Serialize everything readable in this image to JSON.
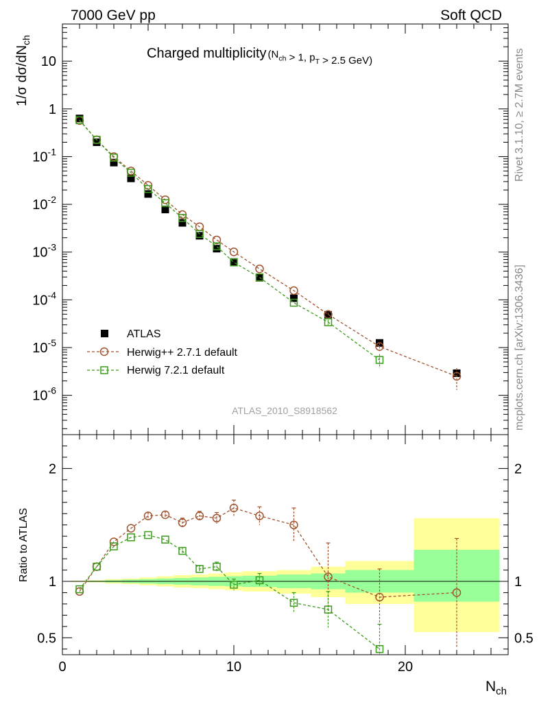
{
  "header": {
    "left": "7000 GeV pp",
    "right": "Soft QCD"
  },
  "side_labels": {
    "rivet": "Rivet 3.1.10, ≥ 2.7M events",
    "mcplots": "mcplots.cern.ch [arXiv:1306.3436]"
  },
  "chart_data": [
    {
      "type": "scatter",
      "panel": "main",
      "title_main": "Charged multiplicity",
      "title_cond": "(N_ch > 1, p_T > 2.5 GeV)",
      "ylabel": "1/σ dσ/dN_ch",
      "yscale": "log",
      "ylim": [
        1.5e-07,
        60
      ],
      "xlim": [
        0,
        26
      ],
      "y_ticks": [
        {
          "value": 10,
          "label": "10"
        },
        {
          "value": 1,
          "label": "1"
        },
        {
          "value": 0.1,
          "label": "10^-1"
        },
        {
          "value": 0.01,
          "label": "10^-2"
        },
        {
          "value": 0.001,
          "label": "10^-3"
        },
        {
          "value": 0.0001,
          "label": "10^-4"
        },
        {
          "value": 1e-05,
          "label": "10^-5"
        },
        {
          "value": 1e-06,
          "label": "10^-6"
        }
      ],
      "watermark": "ATLAS_2010_S8918562",
      "legend": [
        {
          "name": "ATLAS",
          "style": "filled-square",
          "color": "#000000"
        },
        {
          "name": "Herwig++ 2.7.1 default",
          "style": "circle-dashed",
          "color": "#a0522d"
        },
        {
          "name": "Herwig 7.2.1 default",
          "style": "square-dashed",
          "color": "#3a9a1a"
        }
      ],
      "series": [
        {
          "name": "ATLAS",
          "x": [
            1,
            2,
            3,
            4,
            5,
            6,
            7,
            8,
            9,
            10,
            11.5,
            13.5,
            15.5,
            18.5,
            23
          ],
          "y": [
            0.63,
            0.2,
            0.075,
            0.035,
            0.0165,
            0.0078,
            0.0041,
            0.0022,
            0.00118,
            0.00062,
            0.00029,
            0.000108,
            4.85e-05,
            1.25e-05,
            2.9e-06
          ]
        },
        {
          "name": "Herwig++ 2.7.1 default",
          "x": [
            1,
            2,
            3,
            4,
            5,
            6,
            7,
            8,
            9,
            10,
            11.5,
            13.5,
            15.5,
            18.5,
            23
          ],
          "y": [
            0.57,
            0.225,
            0.1,
            0.05,
            0.025,
            0.0125,
            0.0061,
            0.0034,
            0.0018,
            0.00101,
            0.000445,
            0.000156,
            4.95e-05,
            1.05e-05,
            2.5e-06
          ],
          "yerr": [
            0,
            0,
            0,
            0,
            0,
            0,
            0,
            0,
            0,
            0,
            0,
            0,
            4e-06,
            2e-06,
            1.2e-06
          ]
        },
        {
          "name": "Herwig 7.2.1 default",
          "x": [
            1,
            2,
            3,
            4,
            5,
            6,
            7,
            8,
            9,
            10,
            11.5,
            13.5,
            15.5,
            18.5
          ],
          "y": [
            0.58,
            0.225,
            0.095,
            0.046,
            0.021,
            0.0106,
            0.0052,
            0.0024,
            0.00132,
            0.00061,
            0.000295,
            8.7e-05,
            3.4e-05,
            5.5e-06
          ],
          "yerr": [
            0,
            0,
            0,
            0,
            0,
            0,
            0,
            0,
            0,
            0,
            0,
            0,
            4e-06,
            1.8e-06
          ]
        }
      ]
    },
    {
      "type": "scatter",
      "panel": "ratio",
      "ylabel": "Ratio to ATLAS",
      "xlabel": "N_ch",
      "ylim": [
        0.35,
        2.3
      ],
      "xlim": [
        0,
        26
      ],
      "y_ticks": [
        {
          "value": 2,
          "label": "2"
        },
        {
          "value": 1,
          "label": "1"
        },
        {
          "value": 0.5,
          "label": "0.5"
        }
      ],
      "x_ticks": [
        {
          "value": 0,
          "label": "0"
        },
        {
          "value": 10,
          "label": "10"
        },
        {
          "value": 20,
          "label": "20"
        }
      ],
      "bands": [
        {
          "x0": 0.5,
          "x1": 1.5,
          "y2_lo": 0.995,
          "y2_hi": 1.005,
          "y1_lo": 0.997,
          "y1_hi": 1.003
        },
        {
          "x0": 1.5,
          "x1": 2.5,
          "y2_lo": 0.99,
          "y2_hi": 1.01,
          "y1_lo": 0.995,
          "y1_hi": 1.005
        },
        {
          "x0": 2.5,
          "x1": 3.5,
          "y2_lo": 0.98,
          "y2_hi": 1.02,
          "y1_lo": 0.99,
          "y1_hi": 1.01
        },
        {
          "x0": 3.5,
          "x1": 4.5,
          "y2_lo": 0.975,
          "y2_hi": 1.025,
          "y1_lo": 0.985,
          "y1_hi": 1.015
        },
        {
          "x0": 4.5,
          "x1": 5.5,
          "y2_lo": 0.965,
          "y2_hi": 1.035,
          "y1_lo": 0.98,
          "y1_hi": 1.02
        },
        {
          "x0": 5.5,
          "x1": 6.5,
          "y2_lo": 0.955,
          "y2_hi": 1.045,
          "y1_lo": 0.975,
          "y1_hi": 1.025
        },
        {
          "x0": 6.5,
          "x1": 7.5,
          "y2_lo": 0.945,
          "y2_hi": 1.055,
          "y1_lo": 0.97,
          "y1_hi": 1.03
        },
        {
          "x0": 7.5,
          "x1": 8.5,
          "y2_lo": 0.94,
          "y2_hi": 1.06,
          "y1_lo": 0.965,
          "y1_hi": 1.035
        },
        {
          "x0": 8.5,
          "x1": 9.5,
          "y2_lo": 0.93,
          "y2_hi": 1.07,
          "y1_lo": 0.96,
          "y1_hi": 1.04
        },
        {
          "x0": 9.5,
          "x1": 10.5,
          "y2_lo": 0.92,
          "y2_hi": 1.08,
          "y1_lo": 0.955,
          "y1_hi": 1.045
        },
        {
          "x0": 10.5,
          "x1": 12.5,
          "y2_lo": 0.91,
          "y2_hi": 1.09,
          "y1_lo": 0.95,
          "y1_hi": 1.05
        },
        {
          "x0": 12.5,
          "x1": 14.5,
          "y2_lo": 0.89,
          "y2_hi": 1.1,
          "y1_lo": 0.94,
          "y1_hi": 1.06
        },
        {
          "x0": 14.5,
          "x1": 16.5,
          "y2_lo": 0.86,
          "y2_hi": 1.13,
          "y1_lo": 0.93,
          "y1_hi": 1.07
        },
        {
          "x0": 16.5,
          "x1": 20.5,
          "y2_lo": 0.8,
          "y2_hi": 1.18,
          "y1_lo": 0.9,
          "y1_hi": 1.1
        },
        {
          "x0": 20.5,
          "x1": 25.5,
          "y2_lo": 0.55,
          "y2_hi": 1.56,
          "y1_lo": 0.82,
          "y1_hi": 1.28
        }
      ],
      "series": [
        {
          "name": "Herwig++ 2.7.1 default",
          "x": [
            1,
            2,
            3,
            4,
            5,
            6,
            7,
            8,
            9,
            10,
            11.5,
            13.5,
            15.5,
            18.5,
            23
          ],
          "y": [
            0.91,
            1.13,
            1.35,
            1.47,
            1.58,
            1.59,
            1.52,
            1.58,
            1.56,
            1.65,
            1.58,
            1.5,
            1.04,
            0.86,
            0.9
          ],
          "yerr": [
            0.02,
            0.02,
            0.02,
            0.02,
            0.03,
            0.03,
            0.04,
            0.04,
            0.05,
            0.07,
            0.08,
            0.15,
            0.3,
            0.25,
            0.48
          ]
        },
        {
          "name": "Herwig 7.2.1 default",
          "x": [
            1,
            2,
            3,
            4,
            5,
            6,
            7,
            8,
            9,
            10,
            11.5,
            13.5,
            15.5,
            18.5
          ],
          "y": [
            0.93,
            1.13,
            1.31,
            1.39,
            1.41,
            1.37,
            1.27,
            1.11,
            1.13,
            0.97,
            1.01,
            0.81,
            0.75,
            0.4
          ],
          "yerr": [
            0.02,
            0.02,
            0.02,
            0.02,
            0.02,
            0.02,
            0.03,
            0.03,
            0.04,
            0.05,
            0.06,
            0.09,
            0.16,
            0.22
          ]
        }
      ]
    }
  ]
}
